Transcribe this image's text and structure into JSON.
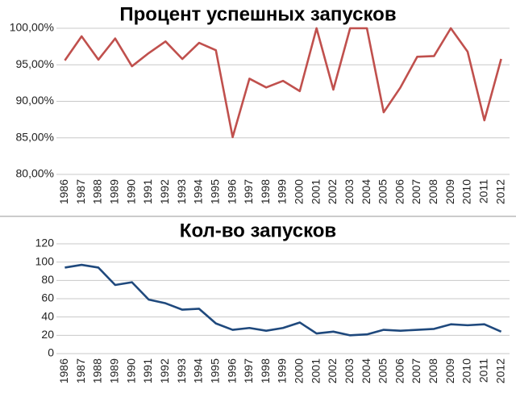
{
  "chart_data": [
    {
      "type": "line",
      "title": "Процент успешных запусков",
      "categories": [
        "1986",
        "1987",
        "1988",
        "1989",
        "1990",
        "1991",
        "1992",
        "1993",
        "1994",
        "1995",
        "1996",
        "1997",
        "1998",
        "1999",
        "2000",
        "2001",
        "2002",
        "2003",
        "2004",
        "2005",
        "2006",
        "2007",
        "2008",
        "2009",
        "2010",
        "2011",
        "2012"
      ],
      "series": [
        {
          "color": "#c0504d",
          "values": [
            95.6,
            98.9,
            95.7,
            98.6,
            94.8,
            96.6,
            98.2,
            95.8,
            98.0,
            97.0,
            85.1,
            93.1,
            91.9,
            92.8,
            91.4,
            100,
            91.6,
            100,
            100,
            88.5,
            91.9,
            96.1,
            96.2,
            100,
            96.8,
            87.4,
            95.8
          ]
        }
      ],
      "ylim": [
        80,
        100
      ],
      "yticks": [
        {
          "value": 80,
          "label": "80,00%"
        },
        {
          "value": 85,
          "label": "85,00%"
        },
        {
          "value": 90,
          "label": "90,00%"
        },
        {
          "value": 95,
          "label": "95,00%"
        },
        {
          "value": 100,
          "label": "100,00%"
        }
      ],
      "grid": true
    },
    {
      "type": "line",
      "title": "Кол-во запусков",
      "categories": [
        "1986",
        "1987",
        "1988",
        "1989",
        "1990",
        "1991",
        "1992",
        "1993",
        "1994",
        "1995",
        "1996",
        "1997",
        "1998",
        "1999",
        "2000",
        "2001",
        "2002",
        "2003",
        "2004",
        "2005",
        "2006",
        "2007",
        "2008",
        "2009",
        "2010",
        "2011",
        "2012"
      ],
      "series": [
        {
          "color": "#1f497d",
          "values": [
            94,
            97,
            94,
            75,
            78,
            59,
            55,
            48,
            49,
            33,
            26,
            28,
            25,
            28,
            34,
            22,
            24,
            20,
            21,
            26,
            25,
            26,
            27,
            32,
            31,
            32,
            24
          ]
        }
      ],
      "ylim": [
        0,
        120
      ],
      "yticks": [
        0,
        20,
        40,
        60,
        80,
        100,
        120
      ],
      "grid": true
    }
  ]
}
